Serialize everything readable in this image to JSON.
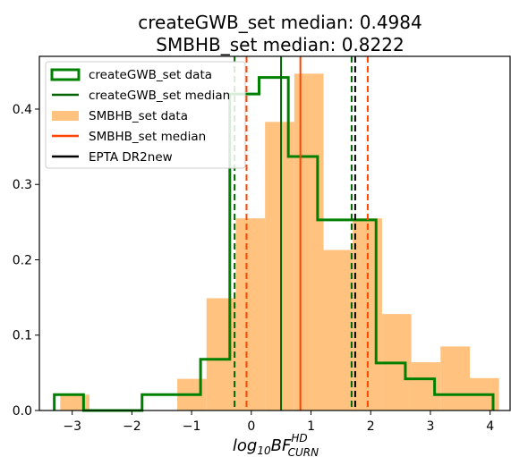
{
  "chart_data": {
    "type": "histogram",
    "title_lines": [
      "createGWB_set median: 0.4984",
      "SMBHB_set median: 0.8222"
    ],
    "xlabel": {
      "base": "log",
      "base_sub": "10",
      "main": "BF",
      "sup": "HD",
      "sub": "CURN"
    },
    "ylabel": "",
    "xlim": [
      -3.55,
      4.35
    ],
    "ylim": [
      0,
      0.47
    ],
    "xticks": [
      -3,
      -2,
      -1,
      0,
      1,
      2,
      3,
      4
    ],
    "xtick_labels": [
      "−3",
      "−2",
      "−1",
      "0",
      "1",
      "2",
      "3",
      "4"
    ],
    "yticks": [
      0.0,
      0.1,
      0.2,
      0.3,
      0.4
    ],
    "ytick_labels": [
      "0.0",
      "0.1",
      "0.2",
      "0.3",
      "0.4"
    ],
    "grid": false,
    "legend_position": "top-left",
    "series": [
      {
        "name": "SMBHB_set data",
        "kind": "bars",
        "color": "#ffc27f",
        "edges": [
          -3.2,
          -2.71,
          -2.22,
          -1.73,
          -1.24,
          -0.75,
          -0.26,
          0.23,
          0.72,
          1.21,
          1.7,
          2.19,
          2.68,
          3.17,
          3.66,
          4.15
        ],
        "values": [
          0.021,
          0.0,
          0.0,
          0.0,
          0.042,
          0.149,
          0.255,
          0.383,
          0.447,
          0.213,
          0.255,
          0.128,
          0.064,
          0.085,
          0.043
        ]
      },
      {
        "name": "createGWB_set data",
        "kind": "step",
        "color": "#008000",
        "edges": [
          -3.3,
          -2.81,
          -2.32,
          -1.83,
          -1.34,
          -0.85,
          -0.36,
          0.13,
          0.62,
          1.11,
          1.6,
          2.09,
          2.58,
          3.07,
          3.56,
          4.05
        ],
        "values": [
          0.021,
          0.0,
          0.0,
          0.021,
          0.021,
          0.068,
          0.42,
          0.442,
          0.337,
          0.253,
          0.253,
          0.063,
          0.042,
          0.021,
          0.021
        ]
      }
    ],
    "vlines": [
      {
        "name": "createGWB_set median",
        "x": 0.4984,
        "color": "#006400",
        "style": "solid"
      },
      {
        "name": "createGWB_set lower",
        "x": -0.28,
        "color": "#006400",
        "style": "dashed"
      },
      {
        "name": "createGWB_set upper",
        "x": 1.68,
        "color": "#006400",
        "style": "dashed"
      },
      {
        "name": "SMBHB_set median",
        "x": 0.8222,
        "color": "#ff4500",
        "style": "solid"
      },
      {
        "name": "SMBHB_set lower",
        "x": -0.08,
        "color": "#ff4500",
        "style": "dashed"
      },
      {
        "name": "SMBHB_set upper",
        "x": 1.95,
        "color": "#ff4500",
        "style": "dashed"
      },
      {
        "name": "EPTA DR2new",
        "x": 1.74,
        "color": "#000000",
        "style": "dashed"
      }
    ],
    "legend": [
      {
        "label": "createGWB_set data",
        "kind": "patch-outline",
        "color": "#008000"
      },
      {
        "label": "createGWB_set median",
        "kind": "line",
        "color": "#006400"
      },
      {
        "label": "SMBHB_set data",
        "kind": "patch-fill",
        "color": "#ffc27f"
      },
      {
        "label": "SMBHB_set median",
        "kind": "line",
        "color": "#ff4500"
      },
      {
        "label": "EPTA DR2new",
        "kind": "line",
        "color": "#000000"
      }
    ]
  }
}
